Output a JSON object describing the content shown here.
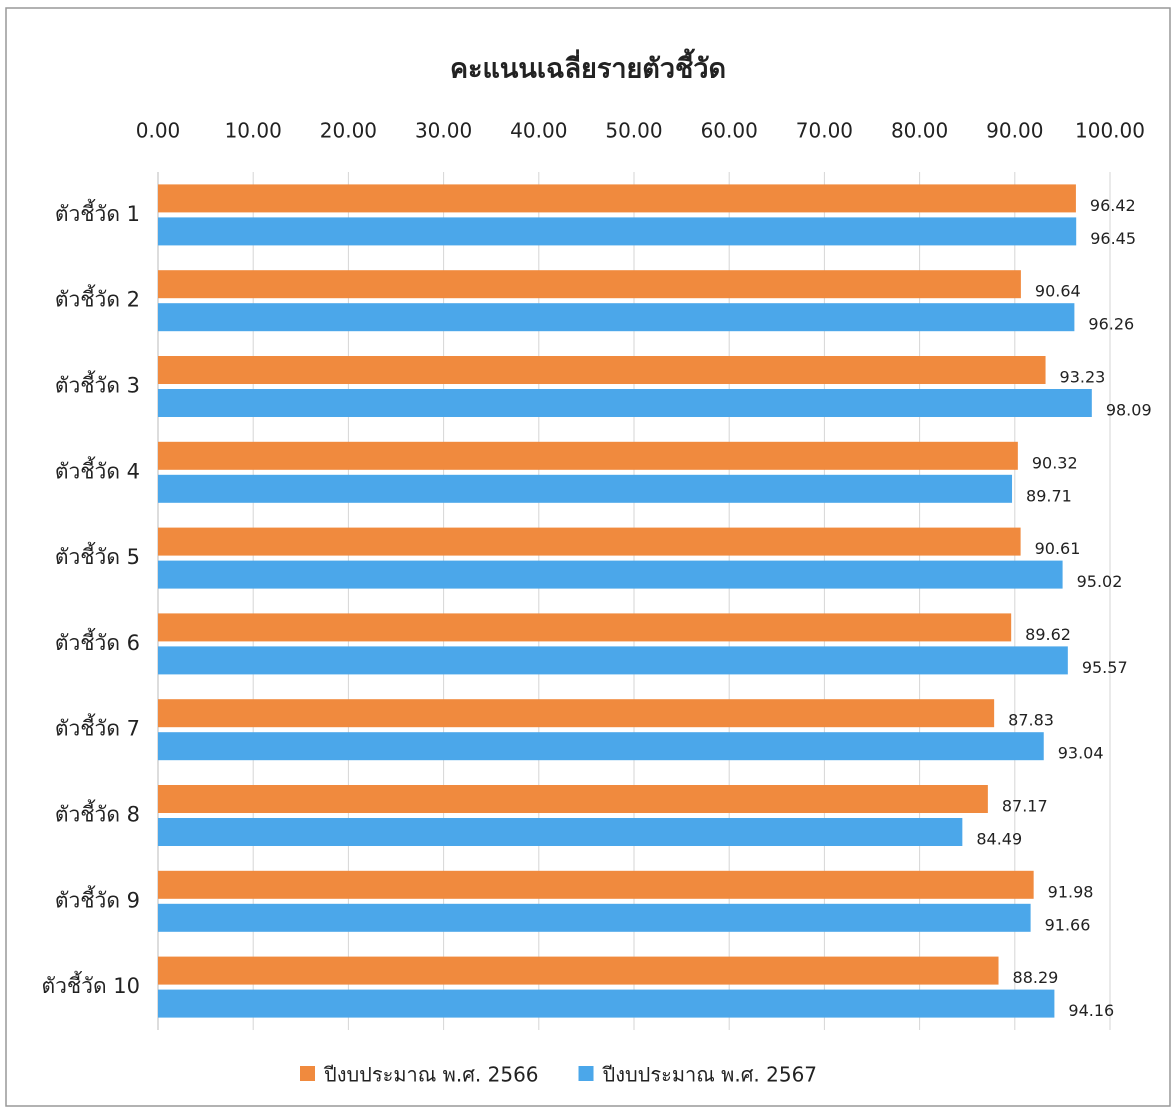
{
  "chart_data": {
    "type": "hbar",
    "title": "คะแนนเฉลี่ยรายตัวชี้วัด",
    "categories": [
      "ตัวชี้วัด 1",
      "ตัวชี้วัด 2",
      "ตัวชี้วัด 3",
      "ตัวชี้วัด 4",
      "ตัวชี้วัด 5",
      "ตัวชี้วัด 6",
      "ตัวชี้วัด 7",
      "ตัวชี้วัด 8",
      "ตัวชี้วัด 9",
      "ตัวชี้วัด 10"
    ],
    "series": [
      {
        "name": "ปีงบประมาณ พ.ศ. 2566",
        "color": "#f08a3e",
        "values": [
          96.42,
          90.64,
          93.23,
          90.32,
          90.61,
          89.62,
          87.83,
          87.17,
          91.98,
          88.29
        ]
      },
      {
        "name": "ปีงบประมาณ พ.ศ. 2567",
        "color": "#4ba7ea",
        "values": [
          96.45,
          96.26,
          98.09,
          89.71,
          95.02,
          95.57,
          93.04,
          84.49,
          91.66,
          94.16
        ]
      }
    ],
    "xlim": [
      0,
      100
    ],
    "xticks": [
      {
        "value": 0,
        "label": "0.00"
      },
      {
        "value": 10,
        "label": "10.00"
      },
      {
        "value": 20,
        "label": "20.00"
      },
      {
        "value": 30,
        "label": "30.00"
      },
      {
        "value": 40,
        "label": "40.00"
      },
      {
        "value": 50,
        "label": "50.00"
      },
      {
        "value": 60,
        "label": "60.00"
      },
      {
        "value": 70,
        "label": "70.00"
      },
      {
        "value": 80,
        "label": "80.00"
      },
      {
        "value": 90,
        "label": "90.00"
      },
      {
        "value": 100,
        "label": "100.00"
      }
    ],
    "grid": true,
    "legend": "bottom"
  }
}
